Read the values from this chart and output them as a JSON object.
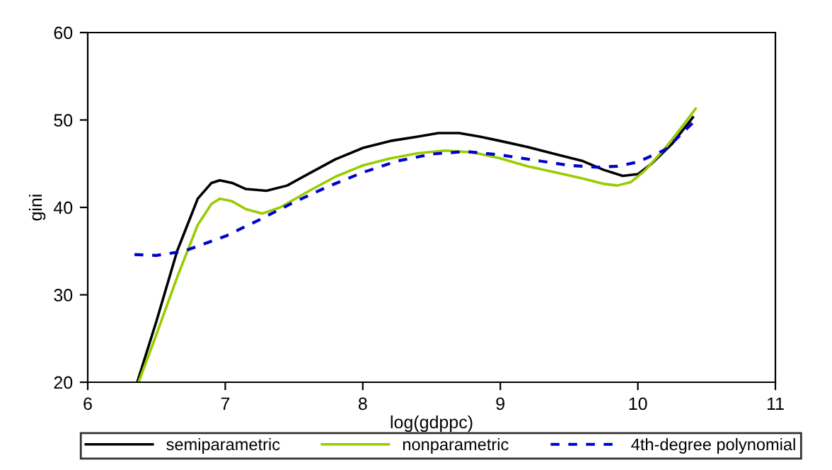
{
  "chart_data": {
    "type": "line",
    "xlabel": "log(gdppc)",
    "ylabel": "gini",
    "xlim": [
      6,
      11
    ],
    "ylim": [
      20,
      60
    ],
    "xticks": [
      6,
      7,
      8,
      9,
      10,
      11
    ],
    "yticks": [
      20,
      30,
      40,
      50,
      60
    ],
    "grid": false,
    "legend": "bottom",
    "marker": "none",
    "series": [
      {
        "name": "semiparametric",
        "color": "#000000",
        "line_style": "solid",
        "x": [
          6.36,
          6.5,
          6.65,
          6.8,
          6.9,
          6.96,
          7.05,
          7.15,
          7.3,
          7.45,
          7.6,
          7.8,
          8.0,
          8.2,
          8.4,
          8.55,
          8.7,
          8.85,
          9.0,
          9.2,
          9.4,
          9.6,
          9.75,
          9.89,
          10.0,
          10.1,
          10.25,
          10.4
        ],
        "values": [
          20,
          27,
          35,
          41,
          42.8,
          43.1,
          42.8,
          42.1,
          41.9,
          42.5,
          43.8,
          45.5,
          46.8,
          47.6,
          48.1,
          48.5,
          48.5,
          48.1,
          47.6,
          46.9,
          46.1,
          45.3,
          44.3,
          43.6,
          43.8,
          45.0,
          47.3,
          50.3
        ]
      },
      {
        "name": "nonparametric",
        "color": "#99cc00",
        "line_style": "solid",
        "x": [
          6.37,
          6.5,
          6.65,
          6.8,
          6.9,
          6.96,
          7.05,
          7.15,
          7.27,
          7.4,
          7.6,
          7.8,
          8.0,
          8.2,
          8.4,
          8.6,
          8.8,
          9.0,
          9.2,
          9.4,
          9.6,
          9.75,
          9.85,
          9.95,
          10.05,
          10.2,
          10.3,
          10.42
        ],
        "values": [
          20,
          25.5,
          32,
          38,
          40.4,
          41.0,
          40.7,
          39.8,
          39.3,
          40.0,
          41.8,
          43.5,
          44.8,
          45.6,
          46.2,
          46.5,
          46.3,
          45.6,
          44.7,
          44.0,
          43.3,
          42.7,
          42.5,
          42.9,
          44.2,
          46.8,
          48.8,
          51.3
        ]
      },
      {
        "name": "4th-degree polynomial",
        "color": "#0000cc",
        "line_style": "dashed",
        "x": [
          6.34,
          6.5,
          6.7,
          7.0,
          7.25,
          7.5,
          7.75,
          8.0,
          8.25,
          8.5,
          8.75,
          9.0,
          9.25,
          9.5,
          9.7,
          9.85,
          10.0,
          10.2,
          10.42
        ],
        "values": [
          34.6,
          34.5,
          35.0,
          36.7,
          38.6,
          40.6,
          42.4,
          44.0,
          45.3,
          46.1,
          46.4,
          46.0,
          45.4,
          44.8,
          44.6,
          44.7,
          45.2,
          46.6,
          50.0
        ]
      }
    ]
  }
}
